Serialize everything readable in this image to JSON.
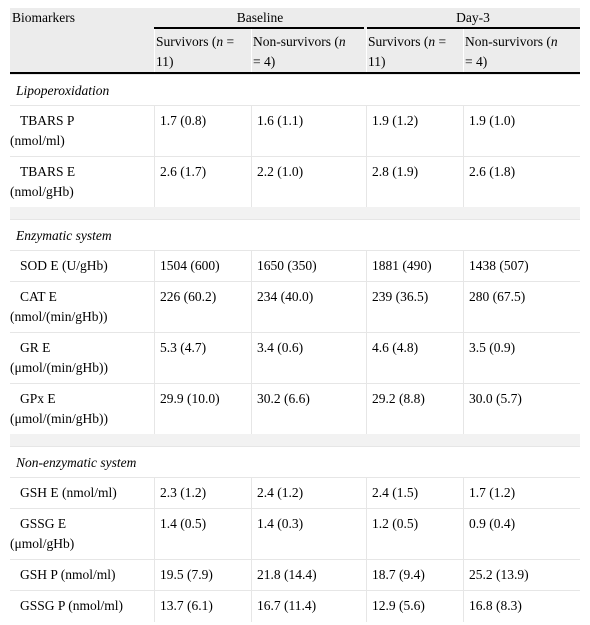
{
  "header": {
    "col_biomarkers": "Biomarkers",
    "group_baseline": "Baseline",
    "group_day3": "Day-3",
    "sub": [
      {
        "line1_pre": "Survivors (",
        "var": "n",
        "line1_post": " =",
        "line2": "11)"
      },
      {
        "line1_pre": "Non-survivors (",
        "var": "n",
        "line1_post": "",
        "line2": "= 4)"
      },
      {
        "line1_pre": "Survivors (",
        "var": "n",
        "line1_post": " =",
        "line2": "11)"
      },
      {
        "line1_pre": "Non-survivors (",
        "var": "n",
        "line1_post": "",
        "line2": "= 4)"
      }
    ]
  },
  "sections": [
    {
      "title": "Lipoperoxidation",
      "rows": [
        {
          "name1": "TBARS P",
          "name2": "(nmol/ml)",
          "values": [
            "1.7 (0.8)",
            "1.6 (1.1)",
            "1.9 (1.2)",
            "1.9 (1.0)"
          ]
        },
        {
          "name1": "TBARS E",
          "name2": "(nmol/gHb)",
          "values": [
            "2.6 (1.7)",
            "2.2 (1.0)",
            "2.8 (1.9)",
            "2.6 (1.8)"
          ]
        }
      ]
    },
    {
      "title": "Enzymatic system",
      "rows": [
        {
          "name1": "SOD E (U/gHb)",
          "name2": "",
          "values": [
            "1504 (600)",
            "1650 (350)",
            "1881 (490)",
            "1438 (507)"
          ]
        },
        {
          "name1": "CAT E",
          "name2": "(nmol/(min/gHb))",
          "values": [
            "226 (60.2)",
            "234 (40.0)",
            "239 (36.5)",
            "280 (67.5)"
          ]
        },
        {
          "name1": "GR E",
          "name2": "(μmol/(min/gHb))",
          "values": [
            "5.3 (4.7)",
            "3.4 (0.6)",
            "4.6 (4.8)",
            "3.5 (0.9)"
          ]
        },
        {
          "name1": "GPx E",
          "name2": "(μmol/(min/gHb))",
          "values": [
            "29.9 (10.0)",
            "30.2 (6.6)",
            "29.2 (8.8)",
            "30.0 (5.7)"
          ]
        }
      ]
    },
    {
      "title": "Non-enzymatic system",
      "rows": [
        {
          "name1": "GSH E (nmol/ml)",
          "name2": "",
          "values": [
            "2.3 (1.2)",
            "2.4 (1.2)",
            "2.4 (1.5)",
            "1.7 (1.2)"
          ]
        },
        {
          "name1": "GSSG E",
          "name2": "(μmol/gHb)",
          "values": [
            "1.4 (0.5)",
            "1.4 (0.3)",
            "1.2 (0.5)",
            "0.9 (0.4)"
          ]
        },
        {
          "name1": "GSH P (nmol/ml)",
          "name2": "",
          "values": [
            "19.5 (7.9)",
            "21.8 (14.4)",
            "18.7 (9.4)",
            "25.2 (13.9)"
          ]
        },
        {
          "name1": "GSSG P (nmol/ml)",
          "name2": "",
          "values": [
            "13.7 (6.1)",
            "16.7 (11.4)",
            "12.9 (5.6)",
            "16.8 (8.3)"
          ]
        }
      ]
    }
  ]
}
